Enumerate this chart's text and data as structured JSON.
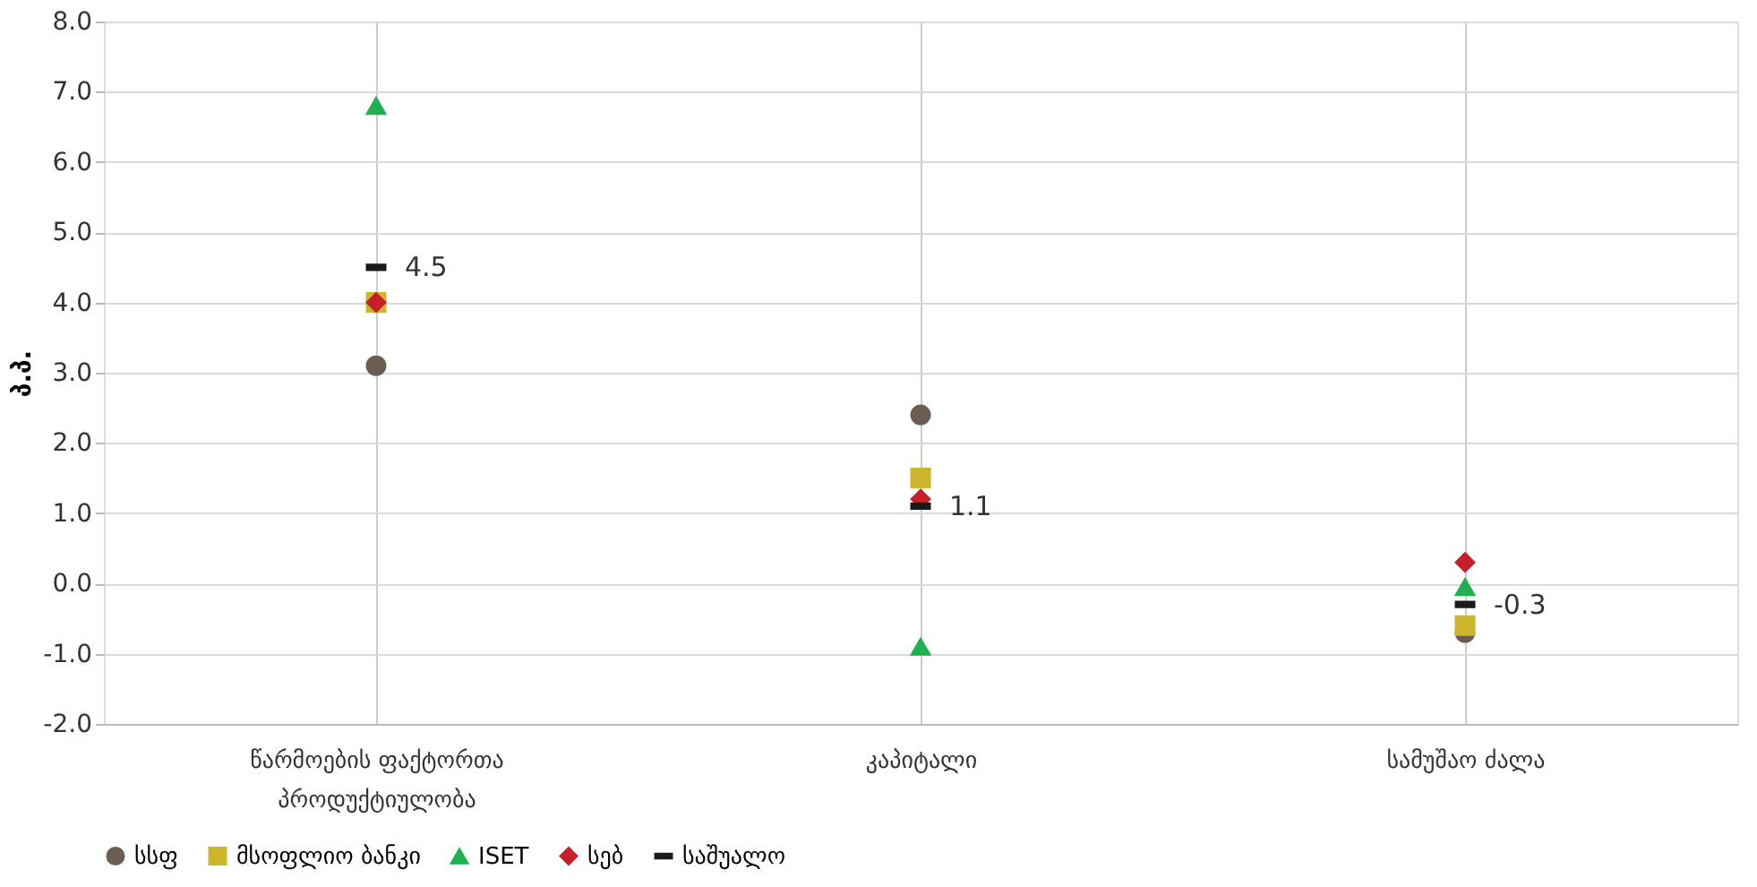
{
  "chart_data": {
    "type": "scatter",
    "ylabel": "პ.პ.",
    "categories": [
      "წარმოების ფაქტორთა პროდუქტიულობა",
      "კაპიტალი",
      "სამუშაო ძალა"
    ],
    "series": [
      {
        "name": "სსფ",
        "color": "#6b5d53",
        "marker": "circle",
        "values": [
          3.1,
          2.4,
          -0.7
        ]
      },
      {
        "name": "მსოფლიო ბანკი",
        "color": "#cdb52c",
        "marker": "square",
        "values": [
          4.0,
          1.5,
          -0.6
        ]
      },
      {
        "name": "ISET",
        "color": "#1fb04f",
        "marker": "triangle",
        "values": [
          6.8,
          -0.9,
          -0.05
        ]
      },
      {
        "name": "სებ",
        "color": "#c8202a",
        "marker": "diamond",
        "values": [
          4.0,
          1.2,
          0.3
        ]
      },
      {
        "name": "საშუალო",
        "color": "#1a1a1a",
        "values": [
          4.5,
          1.1,
          -0.3
        ],
        "value_labels": [
          "4.5",
          "1.1",
          "-0.3"
        ]
      }
    ],
    "ylim": [
      -2.0,
      8.0
    ],
    "yticks": [
      {
        "value": -2,
        "label": "-2.0"
      },
      {
        "value": -1,
        "label": "-1.0"
      },
      {
        "value": 0,
        "label": "0.0"
      },
      {
        "value": 1,
        "label": "1.0"
      },
      {
        "value": 2,
        "label": "2.0"
      },
      {
        "value": 3,
        "label": "3.0"
      },
      {
        "value": 4,
        "label": "4.0"
      },
      {
        "value": 5,
        "label": "5.0"
      },
      {
        "value": 6,
        "label": "6.0"
      },
      {
        "value": 7,
        "label": "7.0"
      },
      {
        "value": 8,
        "label": "8.0"
      }
    ],
    "grid": true,
    "legend": "bottom"
  }
}
